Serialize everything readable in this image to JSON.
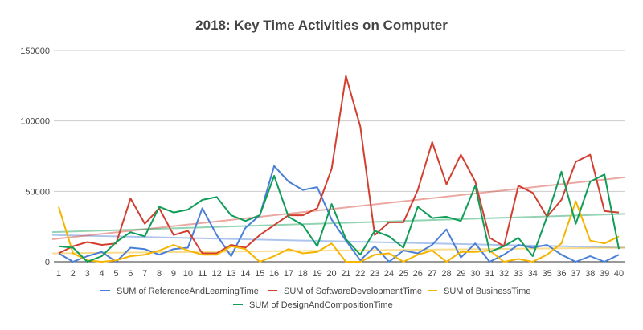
{
  "chart_data": {
    "type": "line",
    "title": "2018: Key Time Activities on Computer",
    "xlabel": "",
    "ylabel": "",
    "x": [
      1,
      2,
      3,
      4,
      5,
      6,
      7,
      8,
      9,
      10,
      11,
      12,
      13,
      14,
      15,
      16,
      17,
      18,
      19,
      20,
      21,
      22,
      23,
      24,
      25,
      26,
      27,
      28,
      29,
      30,
      31,
      32,
      33,
      34,
      35,
      36,
      37,
      38,
      39,
      40
    ],
    "ylim": [
      0,
      150000
    ],
    "yticks": [
      0,
      50000,
      100000,
      150000
    ],
    "ytick_labels": [
      "0",
      "50000",
      "100000",
      "150000"
    ],
    "grid": true,
    "legend_position": "bottom",
    "trendlines": true,
    "series": [
      {
        "name": "SUM of ReferenceAndLearningTime",
        "color": "#4a7fd7",
        "values": [
          6000,
          0,
          4000,
          7000,
          0,
          10000,
          9000,
          5000,
          9000,
          10000,
          38000,
          19000,
          4000,
          24000,
          33000,
          68000,
          57000,
          51000,
          53000,
          30000,
          15000,
          1000,
          11000,
          0,
          8000,
          6000,
          12000,
          23000,
          3000,
          13000,
          0,
          5000,
          12000,
          10000,
          12000,
          5000,
          0,
          4000,
          0,
          5000
        ],
        "trend": [
          19000,
          10000
        ]
      },
      {
        "name": "SUM of SoftwareDevelopmentTime",
        "color": "#d23f31",
        "values": [
          6000,
          11000,
          14000,
          12000,
          13000,
          45000,
          27000,
          38000,
          19000,
          22000,
          6000,
          6000,
          12000,
          10000,
          19000,
          26000,
          33000,
          33000,
          38000,
          66000,
          132000,
          96000,
          19000,
          28000,
          28000,
          51000,
          85000,
          55000,
          76000,
          57000,
          17000,
          11000,
          54000,
          49000,
          32000,
          44000,
          71000,
          76000,
          36000,
          35000
        ],
        "trend": [
          16000,
          60000
        ]
      },
      {
        "name": "SUM of BusinessTime",
        "color": "#f4b400",
        "values": [
          39000,
          6000,
          1000,
          0,
          1000,
          4000,
          5000,
          8000,
          12000,
          8000,
          5000,
          5000,
          11000,
          9000,
          0,
          4000,
          9000,
          6000,
          7000,
          13000,
          0,
          0,
          5000,
          6000,
          0,
          5000,
          8000,
          0,
          7000,
          7000,
          8000,
          0,
          2000,
          0,
          5000,
          13000,
          43000,
          15000,
          13000,
          18000
        ],
        "trend": [
          6000,
          10000
        ]
      },
      {
        "name": "SUM of DesignAndCompositionTime",
        "color": "#0f9d58",
        "values": [
          11000,
          10000,
          0,
          4000,
          14000,
          21000,
          18000,
          39000,
          35000,
          37000,
          44000,
          46000,
          33000,
          29000,
          33000,
          61000,
          32000,
          26000,
          11000,
          41000,
          16000,
          5000,
          22000,
          18000,
          10000,
          39000,
          31000,
          32000,
          29000,
          54000,
          7000,
          11000,
          17000,
          4000,
          32000,
          64000,
          27000,
          57000,
          62000,
          9000
        ],
        "trend": [
          21000,
          34000
        ]
      }
    ]
  }
}
